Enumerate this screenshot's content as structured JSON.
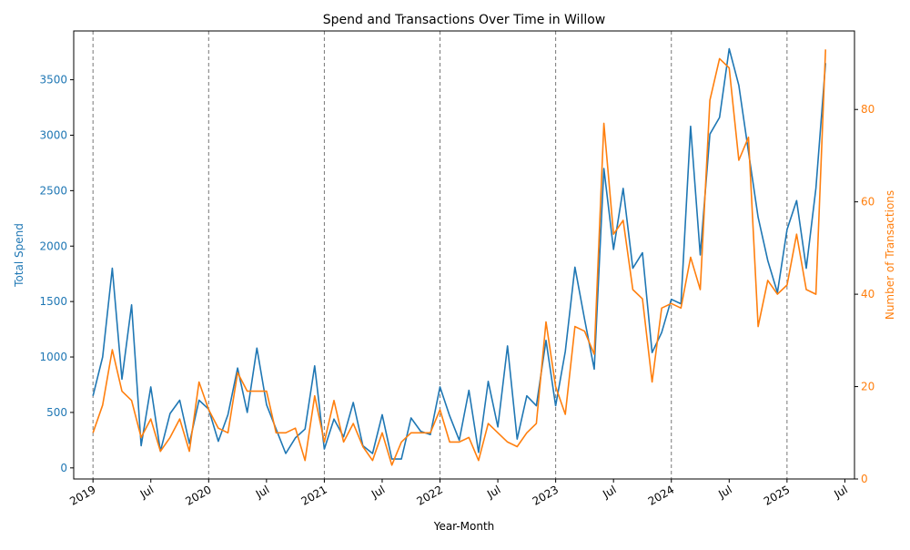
{
  "chart_data": {
    "type": "line",
    "title": "Spend and Transactions Over Time in Willow",
    "xlabel": "Year-Month",
    "ylabel_left": "Total Spend",
    "ylabel_right": "Number of Transactions",
    "x_tick_labels": [
      "2019",
      "Jul",
      "2020",
      "Jul",
      "2021",
      "Jul",
      "2022",
      "Jul",
      "2023",
      "Jul",
      "2024",
      "Jul",
      "2025",
      "Jul"
    ],
    "x_tick_dates": [
      "2019-01",
      "2019-07",
      "2020-01",
      "2020-07",
      "2021-01",
      "2021-07",
      "2022-01",
      "2022-07",
      "2023-01",
      "2023-07",
      "2024-01",
      "2024-07",
      "2025-01",
      "2025-07"
    ],
    "year_markers": [
      "2019-01",
      "2020-01",
      "2021-01",
      "2022-01",
      "2023-01",
      "2024-01",
      "2025-01"
    ],
    "xlim": [
      "2018-11",
      "2025-08"
    ],
    "y_left_ticks": [
      0,
      500,
      1000,
      1500,
      2000,
      2500,
      3000,
      3500
    ],
    "y_left_lim": [
      -100,
      3940
    ],
    "y_right_ticks": [
      0,
      20,
      40,
      60,
      80
    ],
    "y_right_lim": [
      0,
      97
    ],
    "grid": false,
    "colors": {
      "spend": "#1f77b4",
      "transactions": "#ff7f0e",
      "year_marker": "#777777"
    },
    "months": [
      "2019-01",
      "2019-02",
      "2019-03",
      "2019-04",
      "2019-05",
      "2019-06",
      "2019-07",
      "2019-08",
      "2019-09",
      "2019-10",
      "2019-11",
      "2019-12",
      "2020-01",
      "2020-02",
      "2020-03",
      "2020-04",
      "2020-05",
      "2020-06",
      "2020-07",
      "2020-08",
      "2020-09",
      "2020-10",
      "2020-11",
      "2020-12",
      "2021-01",
      "2021-02",
      "2021-03",
      "2021-04",
      "2021-05",
      "2021-06",
      "2021-07",
      "2021-08",
      "2021-09",
      "2021-10",
      "2021-11",
      "2021-12",
      "2022-01",
      "2022-02",
      "2022-03",
      "2022-04",
      "2022-05",
      "2022-06",
      "2022-07",
      "2022-08",
      "2022-09",
      "2022-10",
      "2022-11",
      "2022-12",
      "2023-01",
      "2023-02",
      "2023-03",
      "2023-04",
      "2023-05",
      "2023-06",
      "2023-07",
      "2023-08",
      "2023-09",
      "2023-10",
      "2023-11",
      "2023-12",
      "2024-01",
      "2024-02",
      "2024-03",
      "2024-04",
      "2024-05",
      "2024-06",
      "2024-07",
      "2024-08",
      "2024-09",
      "2024-10",
      "2024-11",
      "2024-12",
      "2025-01",
      "2025-02",
      "2025-03",
      "2025-04",
      "2025-05"
    ],
    "series": [
      {
        "name": "Total Spend",
        "axis": "left",
        "values": [
          650,
          1000,
          1800,
          800,
          1470,
          200,
          730,
          150,
          490,
          610,
          220,
          610,
          530,
          240,
          480,
          900,
          500,
          1080,
          570,
          350,
          130,
          270,
          350,
          920,
          170,
          440,
          280,
          590,
          200,
          130,
          480,
          80,
          80,
          450,
          330,
          300,
          730,
          470,
          250,
          700,
          140,
          780,
          370,
          1100,
          260,
          650,
          560,
          1150,
          560,
          1050,
          1810,
          1340,
          890,
          2700,
          1970,
          2520,
          1800,
          1940,
          1040,
          1220,
          1520,
          1480,
          3080,
          1920,
          3010,
          3160,
          3780,
          3450,
          2850,
          2260,
          1870,
          1580,
          2150,
          2410,
          1800,
          2520,
          3650
        ]
      },
      {
        "name": "Number of Transactions",
        "axis": "right",
        "values": [
          10,
          16,
          28,
          19,
          17,
          9,
          13,
          6,
          9,
          13,
          6,
          21,
          15,
          11,
          10,
          23,
          19,
          19,
          19,
          10,
          10,
          11,
          4,
          18,
          8,
          17,
          8,
          12,
          7,
          4,
          10,
          3,
          8,
          10,
          10,
          10,
          15,
          8,
          8,
          9,
          4,
          12,
          10,
          8,
          7,
          10,
          12,
          34,
          20,
          14,
          33,
          32,
          27,
          77,
          53,
          56,
          41,
          39,
          21,
          37,
          38,
          37,
          48,
          41,
          82,
          91,
          89,
          69,
          74,
          33,
          43,
          40,
          42,
          53,
          41,
          40,
          93
        ]
      }
    ]
  }
}
